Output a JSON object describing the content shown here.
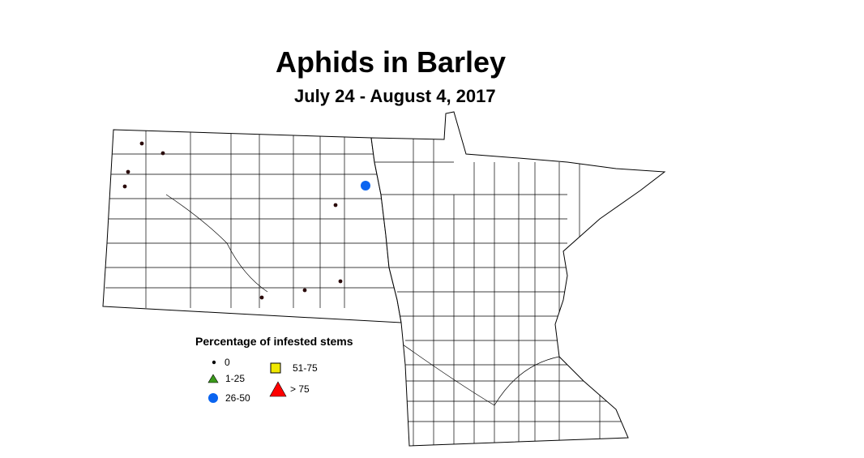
{
  "title": "Aphids in Barley",
  "subtitle": "July 24 - August 4, 2017",
  "legend": {
    "title": "Percentage of infested stems",
    "items": [
      {
        "label": "0",
        "symbol": "dot",
        "color": "#000000"
      },
      {
        "label": "1-25",
        "symbol": "triangle",
        "color": "#3a9a1a"
      },
      {
        "label": "26-50",
        "symbol": "circle",
        "color": "#0a64f0"
      },
      {
        "label": "51-75",
        "symbol": "square",
        "color": "#f0e800"
      },
      {
        "label": "> 75",
        "symbol": "triangle",
        "color": "#ff0000"
      }
    ]
  },
  "sites": [
    {
      "category": "0"
    },
    {
      "category": "0"
    },
    {
      "category": "0"
    },
    {
      "category": "0"
    },
    {
      "category": "0"
    },
    {
      "category": "0"
    },
    {
      "category": "0"
    },
    {
      "category": "0"
    },
    {
      "category": "26-50"
    }
  ]
}
